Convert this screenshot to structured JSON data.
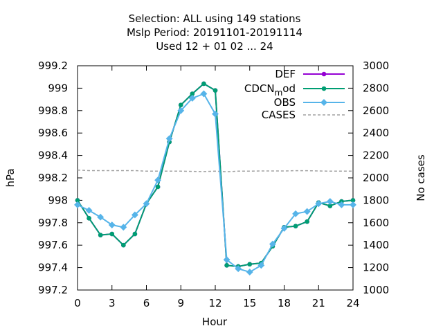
{
  "chart_data": {
    "type": "line",
    "title_lines": [
      "Selection: ALL using   149 stations",
      "Mslp   Period: 20191101-20191114",
      "Used  12 + 01 02 ... 24"
    ],
    "xlabel": "Hour",
    "ylabel": "hPa",
    "y2label": "No cases",
    "xlim": [
      0,
      24
    ],
    "ylim": [
      997.2,
      999.2
    ],
    "y2lim": [
      1000,
      3000
    ],
    "xticks": [
      0,
      3,
      6,
      9,
      12,
      15,
      18,
      21,
      24
    ],
    "yticks": [
      "997.2",
      "997.4",
      "997.6",
      "997.8",
      "998",
      "998.2",
      "998.4",
      "998.6",
      "998.8",
      "999",
      "999.2"
    ],
    "y2ticks": [
      "1000",
      "1200",
      "1400",
      "1600",
      "1800",
      "2000",
      "2200",
      "2400",
      "2600",
      "2800",
      "3000"
    ],
    "grid": false,
    "legend_position": "top-right",
    "legend": [
      {
        "label": "DEF"
      },
      {
        "label": "CDCN_mod",
        "main": "CDCN",
        "sub": "m",
        "tail": "od"
      },
      {
        "label": "OBS"
      },
      {
        "label": "CASES"
      }
    ],
    "x": [
      0,
      1,
      2,
      3,
      4,
      5,
      6,
      7,
      8,
      9,
      10,
      11,
      12,
      13,
      14,
      15,
      16,
      17,
      18,
      19,
      20,
      21,
      22,
      23,
      24
    ],
    "series": [
      {
        "name": "DEF",
        "color": "#9400d3",
        "axis": "y",
        "values": [
          998.0,
          997.84,
          997.69,
          997.7,
          997.6,
          997.7,
          997.97,
          998.12,
          998.52,
          998.85,
          998.95,
          999.04,
          998.98,
          997.42,
          997.41,
          997.43,
          997.44,
          997.59,
          997.76,
          997.77,
          997.81,
          997.98,
          997.95,
          997.99,
          998.0
        ]
      },
      {
        "name": "CDCN_mod",
        "color": "#009e73",
        "axis": "y",
        "values": [
          998.0,
          997.84,
          997.69,
          997.7,
          997.6,
          997.7,
          997.97,
          998.12,
          998.52,
          998.85,
          998.95,
          999.04,
          998.98,
          997.42,
          997.41,
          997.43,
          997.44,
          997.59,
          997.76,
          997.77,
          997.81,
          997.98,
          997.95,
          997.99,
          998.0
        ]
      },
      {
        "name": "OBS",
        "color": "#56b4e9",
        "axis": "y",
        "values": [
          997.96,
          997.91,
          997.85,
          997.78,
          997.76,
          997.87,
          997.97,
          998.18,
          998.55,
          998.8,
          998.91,
          998.95,
          998.77,
          997.47,
          997.39,
          997.36,
          997.42,
          997.61,
          997.75,
          997.88,
          997.9,
          997.97,
          997.99,
          997.96,
          997.96
        ]
      },
      {
        "name": "CASES",
        "color": "#a0a0a0",
        "axis": "y2",
        "values": [
          2070,
          2065,
          2065,
          2065,
          2065,
          2065,
          2060,
          2060,
          2060,
          2060,
          2058,
          2056,
          2060,
          2055,
          2060,
          2060,
          2062,
          2062,
          2062,
          2064,
          2064,
          2062,
          2060,
          2060,
          2060
        ]
      }
    ]
  }
}
